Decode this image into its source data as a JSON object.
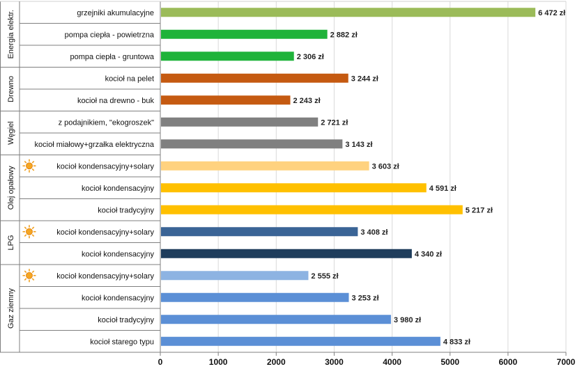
{
  "chart_data": {
    "type": "bar",
    "orientation": "horizontal",
    "title": "",
    "xlabel": "",
    "ylabel": "",
    "xlim": [
      0,
      7000
    ],
    "x_ticks": [
      "0",
      "1000",
      "2000",
      "3000",
      "4000",
      "5000",
      "6000",
      "7000"
    ],
    "grid": true,
    "legend": "none",
    "value_suffix": " zł",
    "groups": [
      {
        "label": "Energia elektr.",
        "count": 3
      },
      {
        "label": "Drewno",
        "count": 2
      },
      {
        "label": "Węgiel",
        "count": 2
      },
      {
        "label": "Olej opałowy",
        "count": 3
      },
      {
        "label": "LPG",
        "count": 2
      },
      {
        "label": "Gaz ziemny",
        "count": 4
      }
    ],
    "categories": [
      "grzejniki akumulacyjne",
      "pompa ciepła - powietrzna",
      "pompa ciepła - gruntowa",
      "kocioł na pelet",
      "kocioł na drewno - buk",
      "z podajnikiem, \"ekogroszek\"",
      "kocioł miałowy+grzałka elektryczna",
      "kocioł kondensacyjny+solary",
      "kocioł kondensacyjny",
      "kocioł tradycyjny",
      "kocioł kondensacyjny+solary",
      "kocioł kondensacyjny",
      "kocioł kondensacyjny+solary",
      "kocioł kondensacyjny",
      "kocioł tradycyjny",
      "kocioł starego typu"
    ],
    "values": [
      6472,
      2882,
      2306,
      3244,
      2243,
      2721,
      3143,
      3603,
      4591,
      5217,
      3408,
      4340,
      2555,
      3253,
      3980,
      4833
    ],
    "value_labels": [
      "6 472 zł",
      "2 882 zł",
      "2 306 zł",
      "3 244 zł",
      "2 243 zł",
      "2 721 zł",
      "3 143 zł",
      "3 603 zł",
      "4 591 zł",
      "5 217 zł",
      "3 408 zł",
      "4 340 zł",
      "2 555 zł",
      "3 253 zł",
      "3 980 zł",
      "4 833 zł"
    ],
    "colors": [
      "#9bbb59",
      "#1fb33a",
      "#1fb33a",
      "#c55a11",
      "#c55a11",
      "#808080",
      "#808080",
      "#ffd27f",
      "#ffc000",
      "#ffc000",
      "#3a6496",
      "#1f3d5c",
      "#8db3e2",
      "#5b8fd6",
      "#5b8fd6",
      "#5b8fd6"
    ],
    "sun_icon_rows": [
      7,
      10,
      12
    ],
    "sun_icon": "sun-icon"
  }
}
